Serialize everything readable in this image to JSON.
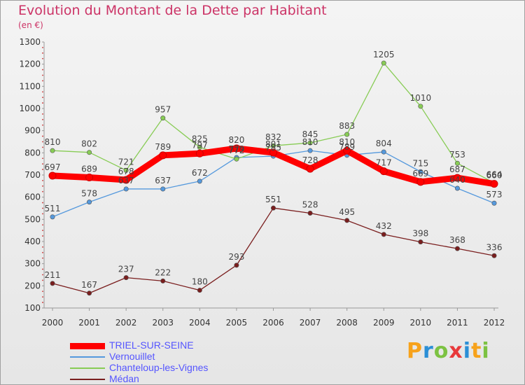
{
  "header": {
    "title": "Evolution du Montant de la Dette par Habitant",
    "unit": "(en €)"
  },
  "brand": {
    "letters": [
      "P",
      "r",
      "o",
      "x",
      "i",
      "t",
      "i"
    ],
    "colors": [
      "#f7a21b",
      "#2b8fd6",
      "#7cc242",
      "#e8393b",
      "#2b8fd6",
      "#f7a21b",
      "#7cc242"
    ]
  },
  "chart_data": {
    "type": "line",
    "title": "Evolution du Montant de la Dette par Habitant",
    "ylabel": "(en €)",
    "xlabel": "",
    "ylim": [
      100,
      1300
    ],
    "yticks": [
      100,
      200,
      300,
      400,
      500,
      600,
      700,
      800,
      900,
      1000,
      1100,
      1200,
      1300
    ],
    "grid": false,
    "legend_position": "bottom-left",
    "x": [
      "2000",
      "2001",
      "2002",
      "2003",
      "2004",
      "2005",
      "2006",
      "2007",
      "2008",
      "2009",
      "2010",
      "2011",
      "2012"
    ],
    "series": [
      {
        "name": "TRIEL-SUR-SEINE",
        "color": "#ff0000",
        "emphasis": true,
        "values": [
          697,
          689,
          678,
          789,
          797,
          820,
          801,
          728,
          810,
          717,
          669,
          687,
          660
        ]
      },
      {
        "name": "Vernouillet",
        "color": "#5599dd",
        "emphasis": false,
        "values": [
          511,
          578,
          637,
          637,
          672,
          779,
          785,
          810,
          789,
          804,
          715,
          640,
          573
        ]
      },
      {
        "name": "Chanteloup-les-Vignes",
        "color": "#88cc55",
        "emphasis": false,
        "values": [
          810,
          802,
          721,
          957,
          825,
          772,
          832,
          845,
          883,
          1205,
          1010,
          753,
          664
        ]
      },
      {
        "name": "Médan",
        "color": "#7a1e1e",
        "emphasis": false,
        "values": [
          211,
          167,
          237,
          222,
          180,
          293,
          551,
          528,
          495,
          432,
          398,
          368,
          336
        ]
      }
    ],
    "data_labels": [
      [
        "697",
        "689",
        "678",
        "789",
        "797",
        "820",
        "801",
        "728",
        "810",
        "717",
        "669",
        "687",
        "660"
      ],
      [
        "511",
        "578",
        "637",
        "637",
        "672",
        "779",
        "785",
        "810",
        "789",
        "804",
        "715",
        "640",
        "573"
      ],
      [
        "810",
        "802",
        "721",
        "957",
        "825",
        "772",
        "832",
        "845",
        "883",
        "1205",
        "1010",
        "753",
        "664"
      ],
      [
        "211",
        "167",
        "237",
        "222",
        "180",
        "293",
        "551",
        "528",
        "495",
        "432",
        "398",
        "368",
        "336"
      ]
    ]
  }
}
